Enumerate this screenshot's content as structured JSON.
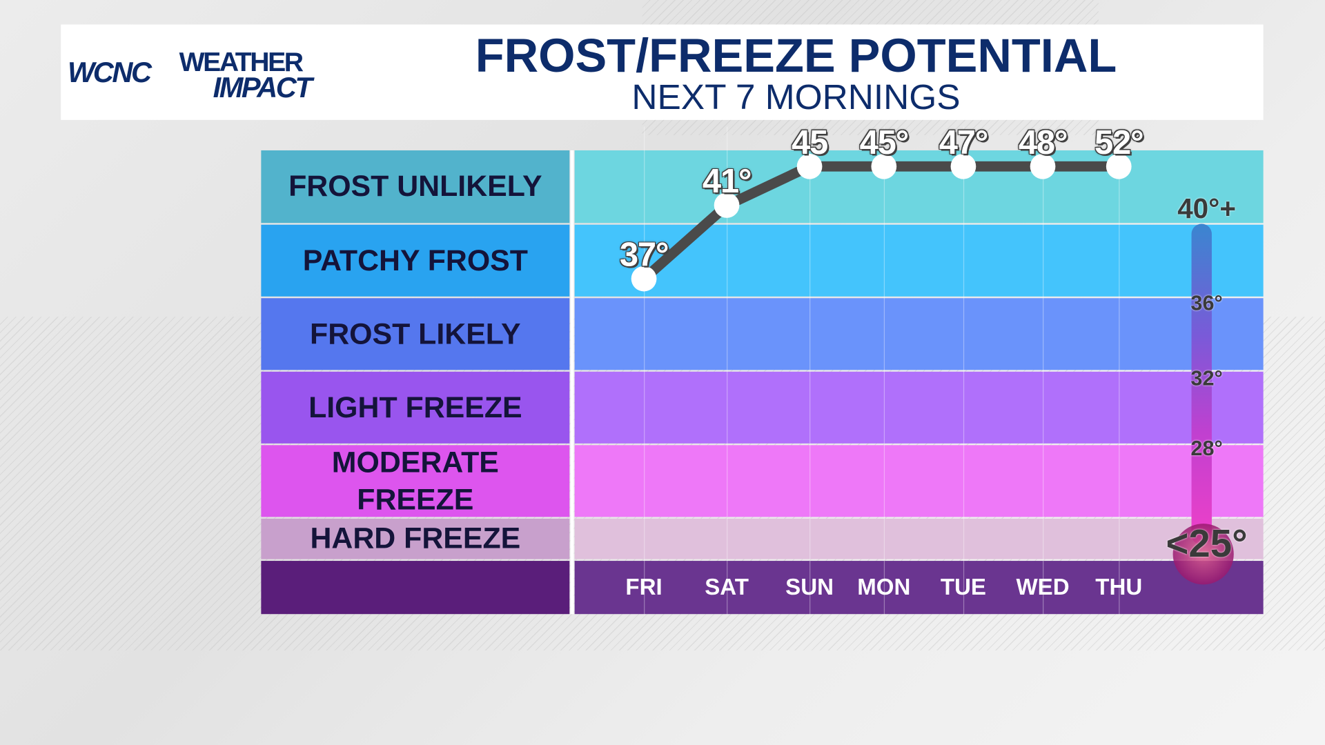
{
  "header": {
    "brand": "WCNC",
    "brand_sub_top": "WEATHER",
    "brand_sub_bottom": "IMPACT",
    "title": "FROST/FREEZE POTENTIAL",
    "subtitle": "NEXT 7 MORNINGS"
  },
  "chart_data": {
    "type": "line",
    "title": "FROST/FREEZE POTENTIAL",
    "subtitle": "NEXT 7 MORNINGS",
    "categories": [
      "FRI",
      "SAT",
      "SUN",
      "MON",
      "TUE",
      "WED",
      "THU"
    ],
    "values": [
      37,
      41,
      45,
      45,
      47,
      48,
      52
    ],
    "value_labels": [
      "37°",
      "41°",
      "45",
      "45°",
      "47°",
      "48°",
      "52°"
    ],
    "bands": [
      {
        "label": "FROST UNLIKELY",
        "color": "#52b3cc",
        "fill": "#6dd6e0"
      },
      {
        "label": "PATCHY FROST",
        "color": "#29a3f0",
        "fill": "#44c4fc"
      },
      {
        "label": "FROST LIKELY",
        "color": "#5577ee",
        "fill": "#6a93fb"
      },
      {
        "label": "LIGHT FREEZE",
        "color": "#9955ee",
        "fill": "#b070fb"
      },
      {
        "label": "MODERATE FREEZE",
        "color": "#dd55ee",
        "fill": "#ee78f8"
      },
      {
        "label": "HARD FREEZE",
        "color": "#c8a0cc",
        "fill": "#e0c0dc"
      }
    ],
    "thermometer_labels": [
      "40°+",
      "36°",
      "32°",
      "28°",
      "<25°"
    ],
    "line_color": "#4a4a4a"
  }
}
